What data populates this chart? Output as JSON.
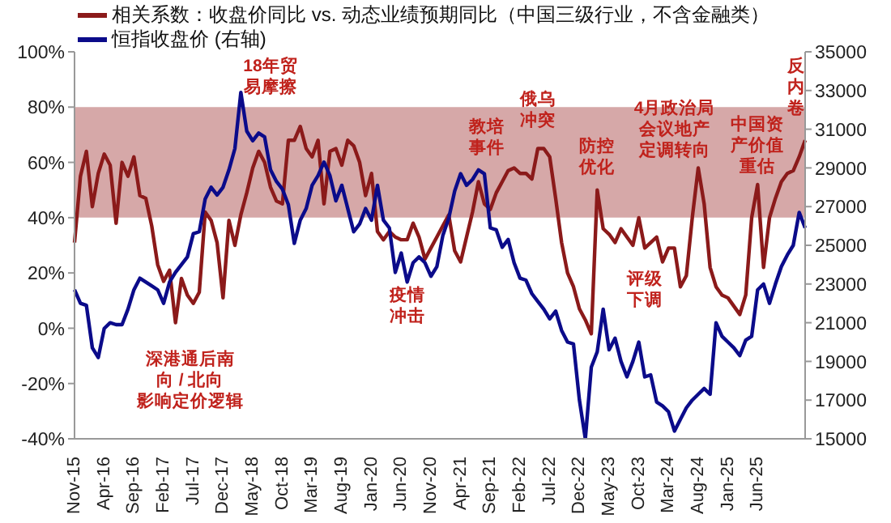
{
  "chart_data": {
    "type": "line",
    "legend": "top left",
    "categories": [
      "Nov-15",
      null,
      null,
      null,
      null,
      "Apr-16",
      null,
      null,
      null,
      null,
      "Sep-16",
      null,
      null,
      null,
      null,
      "Feb-17",
      null,
      null,
      null,
      null,
      "Jul-17",
      null,
      null,
      null,
      null,
      "Dec-17",
      null,
      null,
      null,
      null,
      "May-18",
      null,
      null,
      null,
      null,
      "Oct-18",
      null,
      null,
      null,
      null,
      "Mar-19",
      null,
      null,
      null,
      null,
      "Aug-19",
      null,
      null,
      null,
      null,
      "Jan-20",
      null,
      null,
      null,
      null,
      "Jun-20",
      null,
      null,
      null,
      null,
      "Nov-20",
      null,
      null,
      null,
      null,
      "Apr-21",
      null,
      null,
      null,
      null,
      "Sep-21",
      null,
      null,
      null,
      null,
      "Feb-22",
      null,
      null,
      null,
      null,
      "Jul-22",
      null,
      null,
      null,
      null,
      "Dec-22",
      null,
      null,
      null,
      null,
      "May-23",
      null,
      null,
      null,
      null,
      "Oct-23",
      null,
      null,
      null,
      null,
      "Mar-24",
      null,
      null,
      null,
      null,
      "Aug-24",
      null,
      null,
      null,
      null,
      "Jan-25",
      null,
      null,
      null,
      null,
      "Jun-25",
      null,
      null,
      null,
      null,
      null,
      null,
      null,
      null
    ],
    "series": [
      {
        "name": "相关系数：收盘价同比 vs. 动态业绩预期同比（中国三级行业，不含金融类）",
        "color": "#8b1a1a",
        "values": [
          31,
          55,
          64,
          44,
          56,
          63,
          59,
          38,
          60,
          55,
          62,
          48,
          47,
          37,
          23,
          17,
          21,
          2,
          18,
          12,
          9,
          13,
          42,
          39,
          31,
          11,
          39,
          30,
          41,
          49,
          58,
          64,
          60,
          51,
          46,
          45,
          68,
          68,
          73,
          65,
          62,
          68,
          45,
          64,
          65,
          59,
          68,
          66,
          60,
          48,
          56,
          35,
          32,
          35,
          33,
          32,
          32,
          38,
          33,
          25,
          29,
          33,
          37,
          41,
          28,
          24,
          33,
          42,
          53,
          45,
          43,
          49,
          53,
          57,
          58,
          56,
          56,
          54,
          65,
          65,
          62,
          47,
          31,
          20,
          15,
          7,
          3,
          -2,
          50,
          36,
          34,
          31,
          36,
          33,
          30,
          40,
          29,
          31,
          33,
          24,
          29,
          29,
          15,
          19,
          40,
          58,
          45,
          22,
          15,
          12,
          11,
          8,
          5,
          12,
          40,
          52,
          22,
          40,
          47,
          53,
          56,
          57,
          62,
          68
        ]
      },
      {
        "name": "恒指收盘价 (右轴)",
        "color": "#0b0b8a",
        "axis": "y2",
        "values": [
          22700,
          22000,
          21900,
          19700,
          19200,
          20700,
          21000,
          20900,
          20900,
          21700,
          22700,
          23300,
          23100,
          22900,
          22700,
          22000,
          23100,
          23600,
          24000,
          24400,
          25600,
          25700,
          27400,
          28000,
          27600,
          28000,
          28900,
          30000,
          32900,
          30900,
          30400,
          30800,
          30600,
          28900,
          28300,
          27900,
          27100,
          25100,
          26300,
          26900,
          28100,
          28600,
          29300,
          28600,
          27300,
          28100,
          26900,
          25700,
          26100,
          26900,
          26300,
          28100,
          26300,
          25900,
          23600,
          24600,
          23100,
          24100,
          24400,
          24100,
          23400,
          23900,
          25500,
          26400,
          27800,
          28700,
          28100,
          28400,
          28900,
          28700,
          25900,
          25800,
          24900,
          25300,
          24100,
          23300,
          23200,
          22500,
          22100,
          21700,
          21200,
          21600,
          20600,
          20000,
          19900,
          17000,
          15000,
          18700,
          19500,
          21700,
          19600,
          20200,
          19000,
          18200,
          19000,
          20000,
          18200,
          18300,
          16900,
          16700,
          16400,
          15400,
          16000,
          16600,
          17000,
          17300,
          17600,
          17300,
          21000,
          20300,
          20000,
          19700,
          19300,
          20100,
          20300,
          22700,
          23000,
          22000,
          23000,
          23900,
          24500,
          25000,
          26700,
          25900
        ]
      }
    ],
    "ylim": [
      -40,
      100
    ],
    "yticks": [
      {
        "value": -40,
        "label": "-40%"
      },
      {
        "value": -20,
        "label": "-20%"
      },
      {
        "value": 0,
        "label": "0%"
      },
      {
        "value": 20,
        "label": "20%"
      },
      {
        "value": 40,
        "label": "40%"
      },
      {
        "value": 60,
        "label": "60%"
      },
      {
        "value": 80,
        "label": "80%"
      },
      {
        "value": 100,
        "label": "100%"
      }
    ],
    "y2lim": [
      15000,
      35000
    ],
    "y2ticks": [
      15000,
      17000,
      19000,
      21000,
      23000,
      25000,
      27000,
      29000,
      31000,
      33000,
      35000
    ],
    "bands": [
      {
        "axis": "y",
        "from": 40,
        "to": 80,
        "color": "#d6a8a8"
      }
    ],
    "annotations": [
      "18年贸易摩擦",
      "深港通后南向 / 北向影响定价逻辑",
      "疫情冲击",
      "教培事件",
      "俄乌冲突",
      "防控优化",
      "评级下调",
      "4月政治局会议地产定调转向",
      "中国资产价值重估",
      "反内卷"
    ]
  }
}
